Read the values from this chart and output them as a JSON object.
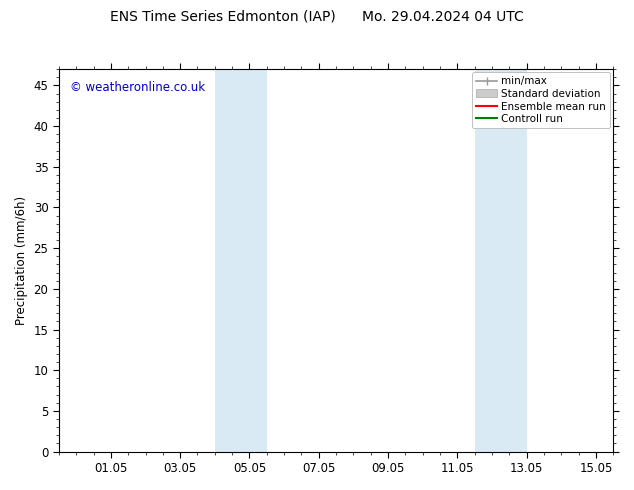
{
  "title_left": "ENS Time Series Edmonton (IAP)",
  "title_right": "Mo. 29.04.2024 04 UTC",
  "ylabel": "Precipitation (mm/6h)",
  "watermark": "© weatheronline.co.uk",
  "watermark_color": "#0000cc",
  "background_color": "#ffffff",
  "plot_bg_color": "#ffffff",
  "xmin": -0.5,
  "xmax": 15.5,
  "ymin": 0,
  "ymax": 47,
  "yticks": [
    0,
    5,
    10,
    15,
    20,
    25,
    30,
    35,
    40,
    45
  ],
  "xtick_labels": [
    "01.05",
    "03.05",
    "05.05",
    "07.05",
    "09.05",
    "11.05",
    "13.05",
    "15.05"
  ],
  "xtick_positions": [
    1.0,
    3.0,
    5.0,
    7.0,
    9.0,
    11.0,
    13.0,
    15.0
  ],
  "shaded_regions": [
    {
      "xmin": 4.0,
      "xmax": 5.5,
      "color": "#daeaf5"
    },
    {
      "xmin": 11.5,
      "xmax": 13.0,
      "color": "#daeaf5"
    }
  ],
  "legend_items": [
    {
      "label": "min/max",
      "color": "#999999",
      "type": "errorbar"
    },
    {
      "label": "Standard deviation",
      "color": "#cccccc",
      "type": "bar"
    },
    {
      "label": "Ensemble mean run",
      "color": "#ff0000",
      "type": "line"
    },
    {
      "label": "Controll run",
      "color": "#008000",
      "type": "line"
    }
  ],
  "title_fontsize": 10,
  "tick_fontsize": 8.5,
  "legend_fontsize": 7.5,
  "watermark_fontsize": 8.5
}
